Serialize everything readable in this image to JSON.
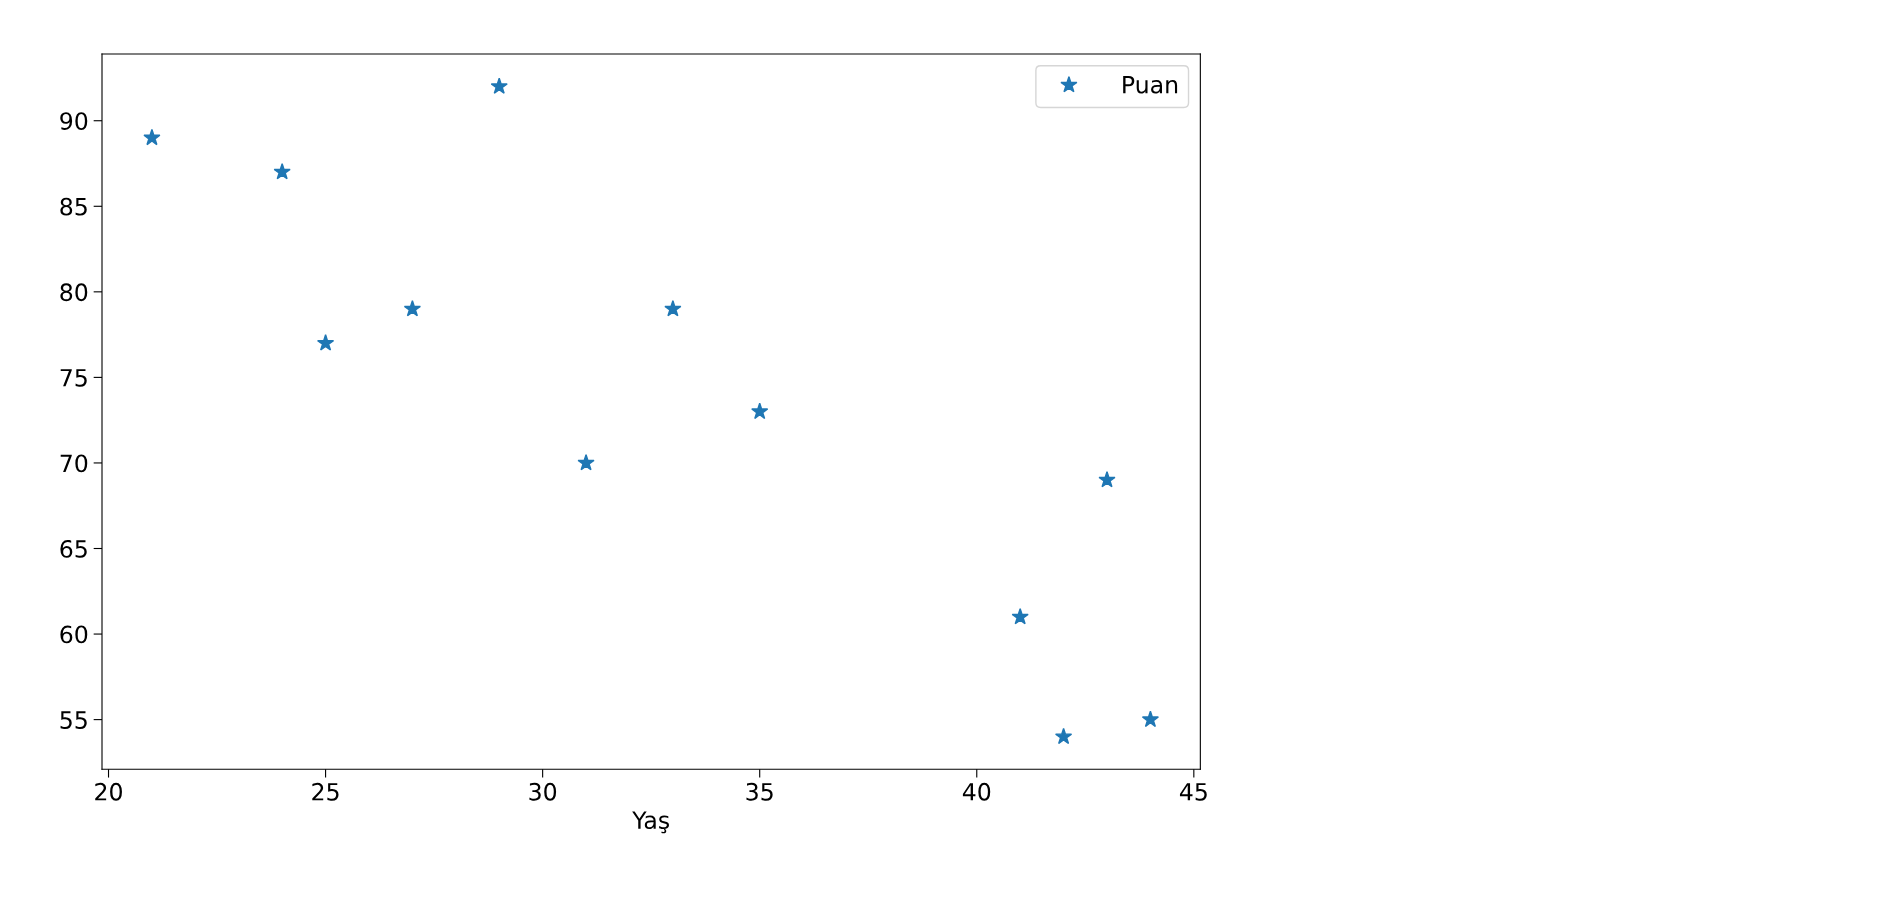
{
  "chart_data": {
    "type": "scatter",
    "xlabel": "Yaş",
    "x": [
      21,
      24,
      25,
      27,
      29,
      31,
      33,
      35,
      41,
      42,
      43,
      44
    ],
    "series": [
      {
        "name": "Puan",
        "color": "#1f77b4",
        "values": [
          89,
          87,
          77,
          79,
          92,
          70,
          79,
          73,
          61,
          54,
          69,
          55
        ]
      }
    ],
    "xlim": [
      19.85,
      45.15
    ],
    "xticks": [
      20,
      25,
      30,
      35,
      40,
      45
    ],
    "ylim": [
      52.1,
      93.9
    ],
    "yticks": [
      55,
      60,
      65,
      70,
      75,
      80,
      85,
      90
    ],
    "marker": "star",
    "grid": false,
    "legend": "top right"
  }
}
